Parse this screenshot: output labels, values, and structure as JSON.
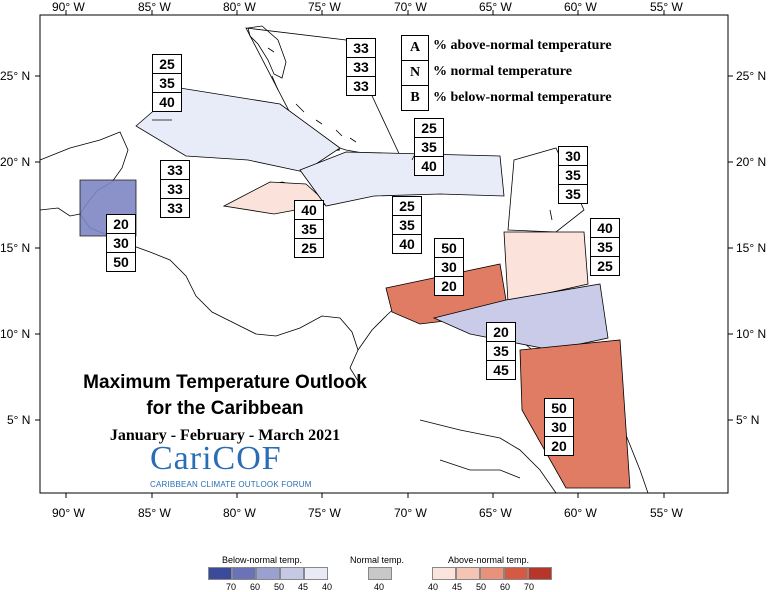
{
  "map": {
    "title_line1": "Maximum Temperature Outlook",
    "title_line2": "for the Caribbean",
    "subtitle": "January - February - March 2021",
    "logo_text": "CariCOF",
    "logo_subtext": "CARIBBEAN CLIMATE OUTLOOK FORUM"
  },
  "key": {
    "items": [
      {
        "letter": "A",
        "label": "% above-normal temperature"
      },
      {
        "letter": "N",
        "label": "% normal temperature"
      },
      {
        "letter": "B",
        "label": "% below-normal temperature"
      }
    ]
  },
  "axes": {
    "lon_labels": [
      "90° W",
      "85° W",
      "80° W",
      "75° W",
      "70° W",
      "65° W",
      "60° W",
      "55° W"
    ],
    "lat_labels": [
      "25° N",
      "20° N",
      "15° N",
      "10° N",
      "5° N"
    ]
  },
  "regions": [
    {
      "id": "bahamas",
      "above": "33",
      "normal": "33",
      "below": "33",
      "fill": "#ffffff"
    },
    {
      "id": "cuba",
      "above": "25",
      "normal": "35",
      "below": "40",
      "fill": "#e8ecf8"
    },
    {
      "id": "belize",
      "above": "20",
      "normal": "30",
      "below": "50",
      "fill": "#7f86c4"
    },
    {
      "id": "cayman",
      "above": "33",
      "normal": "33",
      "below": "33",
      "fill": "#ffffff"
    },
    {
      "id": "jamaica",
      "above": "40",
      "normal": "35",
      "below": "25",
      "fill": "#fbe3db"
    },
    {
      "id": "hispaniola-pr",
      "above": "25",
      "normal": "35",
      "below": "40",
      "fill": "#e8ecf8"
    },
    {
      "id": "northern-lesser-antilles",
      "above": "25",
      "normal": "35",
      "below": "40",
      "fill": "#e8ecf8"
    },
    {
      "id": "north-atlantic-islands",
      "above": "30",
      "normal": "35",
      "below": "35",
      "fill": "#ffffff"
    },
    {
      "id": "windward-islands",
      "above": "40",
      "normal": "35",
      "below": "25",
      "fill": "#fbe3db"
    },
    {
      "id": "abc-islands",
      "above": "50",
      "normal": "30",
      "below": "20",
      "fill": "#e07b64"
    },
    {
      "id": "trinidad",
      "above": "20",
      "normal": "35",
      "below": "45",
      "fill": "#c9cbe8"
    },
    {
      "id": "guianas",
      "above": "50",
      "normal": "30",
      "below": "20",
      "fill": "#e07b64"
    }
  ],
  "legend": {
    "below_title": "Below-normal temp.",
    "normal_title": "Normal temp.",
    "above_title": "Above-normal temp.",
    "below_colors": [
      "#3b4a9a",
      "#6a73b8",
      "#9aa0d0",
      "#c6c9e6",
      "#e8eaf6"
    ],
    "normal_color": "#c8c8c8",
    "above_colors": [
      "#fbe4dc",
      "#f5c4b4",
      "#e8927c",
      "#d45a44",
      "#b8352a"
    ],
    "below_ticks": [
      "70",
      "60",
      "50",
      "45",
      "40"
    ],
    "normal_ticks": [
      "40"
    ],
    "above_ticks": [
      "40",
      "45",
      "50",
      "60",
      "70"
    ]
  }
}
